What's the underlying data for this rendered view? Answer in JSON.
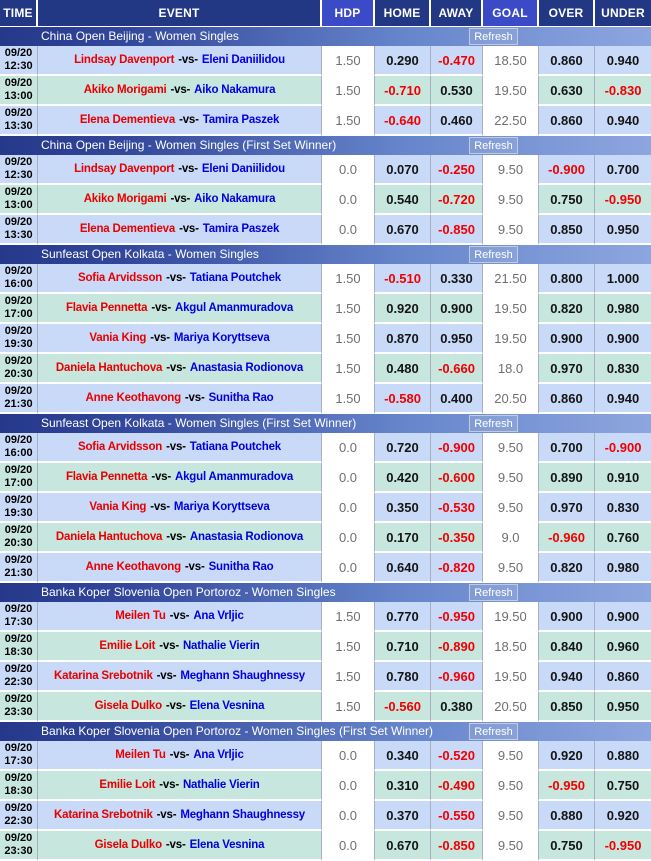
{
  "table": {
    "columns": [
      {
        "key": "time",
        "label": "TIME"
      },
      {
        "key": "event",
        "label": "EVENT"
      },
      {
        "key": "hdp",
        "label": "HDP"
      },
      {
        "key": "home",
        "label": "HOME"
      },
      {
        "key": "away",
        "label": "AWAY"
      },
      {
        "key": "goal",
        "label": "GOAL"
      },
      {
        "key": "over",
        "label": "OVER"
      },
      {
        "key": "under",
        "label": "UNDER"
      }
    ]
  },
  "controls": {
    "refresh_label": "Refresh",
    "vs_separator": "-vs-"
  },
  "colors": {
    "header_bg": "#233885",
    "header_accent": "#3B4BC7",
    "section_gradient": [
      "#25388A",
      "#33489C",
      "#6685CB",
      "#8EA6DF"
    ],
    "row_blue": "#C9DAF8",
    "row_green": "#C7E6DE",
    "muted_text": "#6F6F6F",
    "negative_red": "#F00000",
    "home_name_red": "#E80000",
    "away_name_blue": "#0000E0"
  },
  "sections": [
    {
      "title": "China Open Beijing - Women Singles",
      "rows": [
        {
          "date": "09/20",
          "time": "12:30",
          "home": "Lindsay Davenport",
          "away": "Eleni Daniilidou",
          "hdp": "1.50",
          "home_odds": "0.290",
          "away_odds": "-0.470",
          "goal": "18.50",
          "over": "0.860",
          "under": "0.940"
        },
        {
          "date": "09/20",
          "time": "13:00",
          "home": "Akiko Morigami",
          "away": "Aiko Nakamura",
          "hdp": "1.50",
          "home_odds": "-0.710",
          "away_odds": "0.530",
          "goal": "19.50",
          "over": "0.630",
          "under": "-0.830"
        },
        {
          "date": "09/20",
          "time": "13:30",
          "home": "Elena Dementieva",
          "away": "Tamira Paszek",
          "hdp": "1.50",
          "home_odds": "-0.640",
          "away_odds": "0.460",
          "goal": "22.50",
          "over": "0.860",
          "under": "0.940"
        }
      ]
    },
    {
      "title": "China Open Beijing - Women Singles (First Set Winner)",
      "rows": [
        {
          "date": "09/20",
          "time": "12:30",
          "home": "Lindsay Davenport",
          "away": "Eleni Daniilidou",
          "hdp": "0.0",
          "home_odds": "0.070",
          "away_odds": "-0.250",
          "goal": "9.50",
          "over": "-0.900",
          "under": "0.700"
        },
        {
          "date": "09/20",
          "time": "13:00",
          "home": "Akiko Morigami",
          "away": "Aiko Nakamura",
          "hdp": "0.0",
          "home_odds": "0.540",
          "away_odds": "-0.720",
          "goal": "9.50",
          "over": "0.750",
          "under": "-0.950"
        },
        {
          "date": "09/20",
          "time": "13:30",
          "home": "Elena Dementieva",
          "away": "Tamira Paszek",
          "hdp": "0.0",
          "home_odds": "0.670",
          "away_odds": "-0.850",
          "goal": "9.50",
          "over": "0.850",
          "under": "0.950"
        }
      ]
    },
    {
      "title": "Sunfeast Open Kolkata - Women Singles",
      "rows": [
        {
          "date": "09/20",
          "time": "16:00",
          "home": "Sofia Arvidsson",
          "away": "Tatiana Poutchek",
          "hdp": "1.50",
          "home_odds": "-0.510",
          "away_odds": "0.330",
          "goal": "21.50",
          "over": "0.800",
          "under": "1.000"
        },
        {
          "date": "09/20",
          "time": "17:00",
          "home": "Flavia Pennetta",
          "away": "Akgul Amanmuradova",
          "hdp": "1.50",
          "home_odds": "0.920",
          "away_odds": "0.900",
          "goal": "19.50",
          "over": "0.820",
          "under": "0.980"
        },
        {
          "date": "09/20",
          "time": "19:30",
          "home": "Vania King",
          "away": "Mariya Koryttseva",
          "hdp": "1.50",
          "home_odds": "0.870",
          "away_odds": "0.950",
          "goal": "19.50",
          "over": "0.900",
          "under": "0.900"
        },
        {
          "date": "09/20",
          "time": "20:30",
          "home": "Daniela Hantuchova",
          "away": "Anastasia Rodionova",
          "hdp": "1.50",
          "home_odds": "0.480",
          "away_odds": "-0.660",
          "goal": "18.0",
          "over": "0.970",
          "under": "0.830"
        },
        {
          "date": "09/20",
          "time": "21:30",
          "home": "Anne Keothavong",
          "away": "Sunitha Rao",
          "hdp": "1.50",
          "home_odds": "-0.580",
          "away_odds": "0.400",
          "goal": "20.50",
          "over": "0.860",
          "under": "0.940"
        }
      ]
    },
    {
      "title": "Sunfeast Open Kolkata - Women Singles (First Set Winner)",
      "rows": [
        {
          "date": "09/20",
          "time": "16:00",
          "home": "Sofia Arvidsson",
          "away": "Tatiana Poutchek",
          "hdp": "0.0",
          "home_odds": "0.720",
          "away_odds": "-0.900",
          "goal": "9.50",
          "over": "0.700",
          "under": "-0.900"
        },
        {
          "date": "09/20",
          "time": "17:00",
          "home": "Flavia Pennetta",
          "away": "Akgul Amanmuradova",
          "hdp": "0.0",
          "home_odds": "0.420",
          "away_odds": "-0.600",
          "goal": "9.50",
          "over": "0.890",
          "under": "0.910"
        },
        {
          "date": "09/20",
          "time": "19:30",
          "home": "Vania King",
          "away": "Mariya Koryttseva",
          "hdp": "0.0",
          "home_odds": "0.350",
          "away_odds": "-0.530",
          "goal": "9.50",
          "over": "0.970",
          "under": "0.830"
        },
        {
          "date": "09/20",
          "time": "20:30",
          "home": "Daniela Hantuchova",
          "away": "Anastasia Rodionova",
          "hdp": "0.0",
          "home_odds": "0.170",
          "away_odds": "-0.350",
          "goal": "9.0",
          "over": "-0.960",
          "under": "0.760"
        },
        {
          "date": "09/20",
          "time": "21:30",
          "home": "Anne Keothavong",
          "away": "Sunitha Rao",
          "hdp": "0.0",
          "home_odds": "0.640",
          "away_odds": "-0.820",
          "goal": "9.50",
          "over": "0.820",
          "under": "0.980"
        }
      ]
    },
    {
      "title": "Banka Koper Slovenia Open Portoroz - Women Singles",
      "rows": [
        {
          "date": "09/20",
          "time": "17:30",
          "home": "Meilen Tu",
          "away": "Ana Vrljic",
          "hdp": "1.50",
          "home_odds": "0.770",
          "away_odds": "-0.950",
          "goal": "19.50",
          "over": "0.900",
          "under": "0.900"
        },
        {
          "date": "09/20",
          "time": "18:30",
          "home": "Emilie Loit",
          "away": "Nathalie Vierin",
          "hdp": "1.50",
          "home_odds": "0.710",
          "away_odds": "-0.890",
          "goal": "18.50",
          "over": "0.840",
          "under": "0.960"
        },
        {
          "date": "09/20",
          "time": "22:30",
          "home": "Katarina Srebotnik",
          "away": "Meghann Shaughnessy",
          "hdp": "1.50",
          "home_odds": "0.780",
          "away_odds": "-0.960",
          "goal": "19.50",
          "over": "0.940",
          "under": "0.860"
        },
        {
          "date": "09/20",
          "time": "23:30",
          "home": "Gisela Dulko",
          "away": "Elena Vesnina",
          "hdp": "1.50",
          "home_odds": "-0.560",
          "away_odds": "0.380",
          "goal": "20.50",
          "over": "0.850",
          "under": "0.950"
        }
      ]
    },
    {
      "title": "Banka Koper Slovenia Open Portoroz - Women Singles (First Set Winner)",
      "rows": [
        {
          "date": "09/20",
          "time": "17:30",
          "home": "Meilen Tu",
          "away": "Ana Vrljic",
          "hdp": "0.0",
          "home_odds": "0.340",
          "away_odds": "-0.520",
          "goal": "9.50",
          "over": "0.920",
          "under": "0.880"
        },
        {
          "date": "09/20",
          "time": "18:30",
          "home": "Emilie Loit",
          "away": "Nathalie Vierin",
          "hdp": "0.0",
          "home_odds": "0.310",
          "away_odds": "-0.490",
          "goal": "9.50",
          "over": "-0.950",
          "under": "0.750"
        },
        {
          "date": "09/20",
          "time": "22:30",
          "home": "Katarina Srebotnik",
          "away": "Meghann Shaughnessy",
          "hdp": "0.0",
          "home_odds": "0.370",
          "away_odds": "-0.550",
          "goal": "9.50",
          "over": "0.880",
          "under": "0.920"
        },
        {
          "date": "09/20",
          "time": "23:30",
          "home": "Gisela Dulko",
          "away": "Elena Vesnina",
          "hdp": "0.0",
          "home_odds": "0.670",
          "away_odds": "-0.850",
          "goal": "9.50",
          "over": "0.750",
          "under": "-0.950"
        }
      ]
    }
  ]
}
